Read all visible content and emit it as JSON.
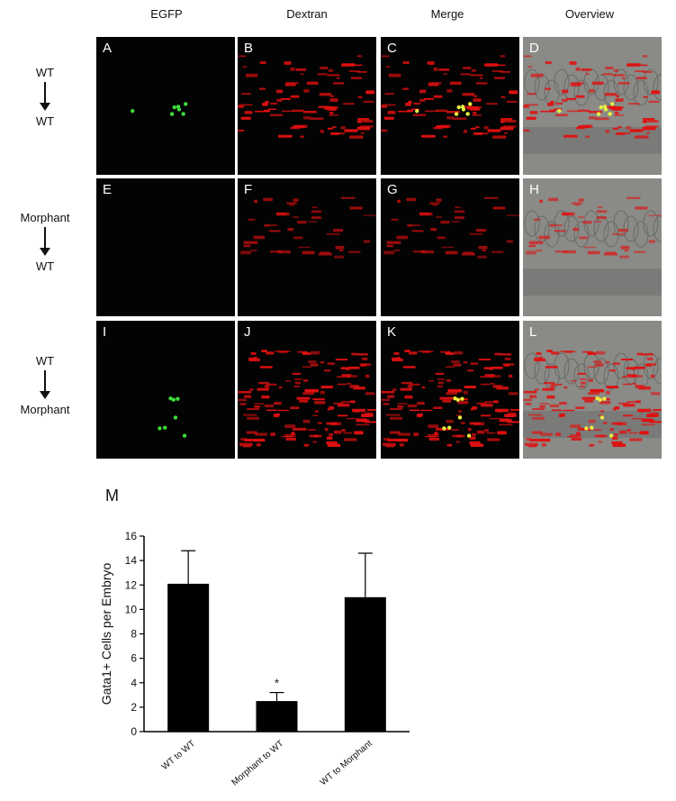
{
  "columns": [
    "EGFP",
    "Dextran",
    "Merge",
    "Overview"
  ],
  "rows": [
    {
      "from": "WT",
      "to": "WT",
      "panels": [
        "A",
        "B",
        "C",
        "D"
      ],
      "gfp_level": "high",
      "red_level": "medium"
    },
    {
      "from": "Morphant",
      "to": "WT",
      "panels": [
        "E",
        "F",
        "G",
        "H"
      ],
      "gfp_level": "none",
      "red_level": "low"
    },
    {
      "from": "WT",
      "to": "Morphant",
      "panels": [
        "I",
        "J",
        "K",
        "L"
      ],
      "gfp_level": "high",
      "red_level": "high"
    }
  ],
  "colors": {
    "gfp": "#3ddc3a",
    "dextran": "#e01010",
    "merge_overlap": "#e8f040",
    "background": "#030303"
  },
  "chart_label": "M",
  "chart_data": {
    "type": "bar",
    "categories": [
      "WT to WT",
      "Morphant to WT",
      "WT to Morphant"
    ],
    "values": [
      12.1,
      2.5,
      11.0
    ],
    "error_upper": [
      14.8,
      3.2,
      14.6
    ],
    "annotations": [
      "",
      "*",
      ""
    ],
    "ylabel": "Gata1+ Cells per Embryo",
    "xlabel": "",
    "ylim": [
      0,
      16
    ],
    "yticks": [
      0,
      2,
      4,
      6,
      8,
      10,
      12,
      14,
      16
    ],
    "grid": false,
    "bar_color": "#000000"
  }
}
